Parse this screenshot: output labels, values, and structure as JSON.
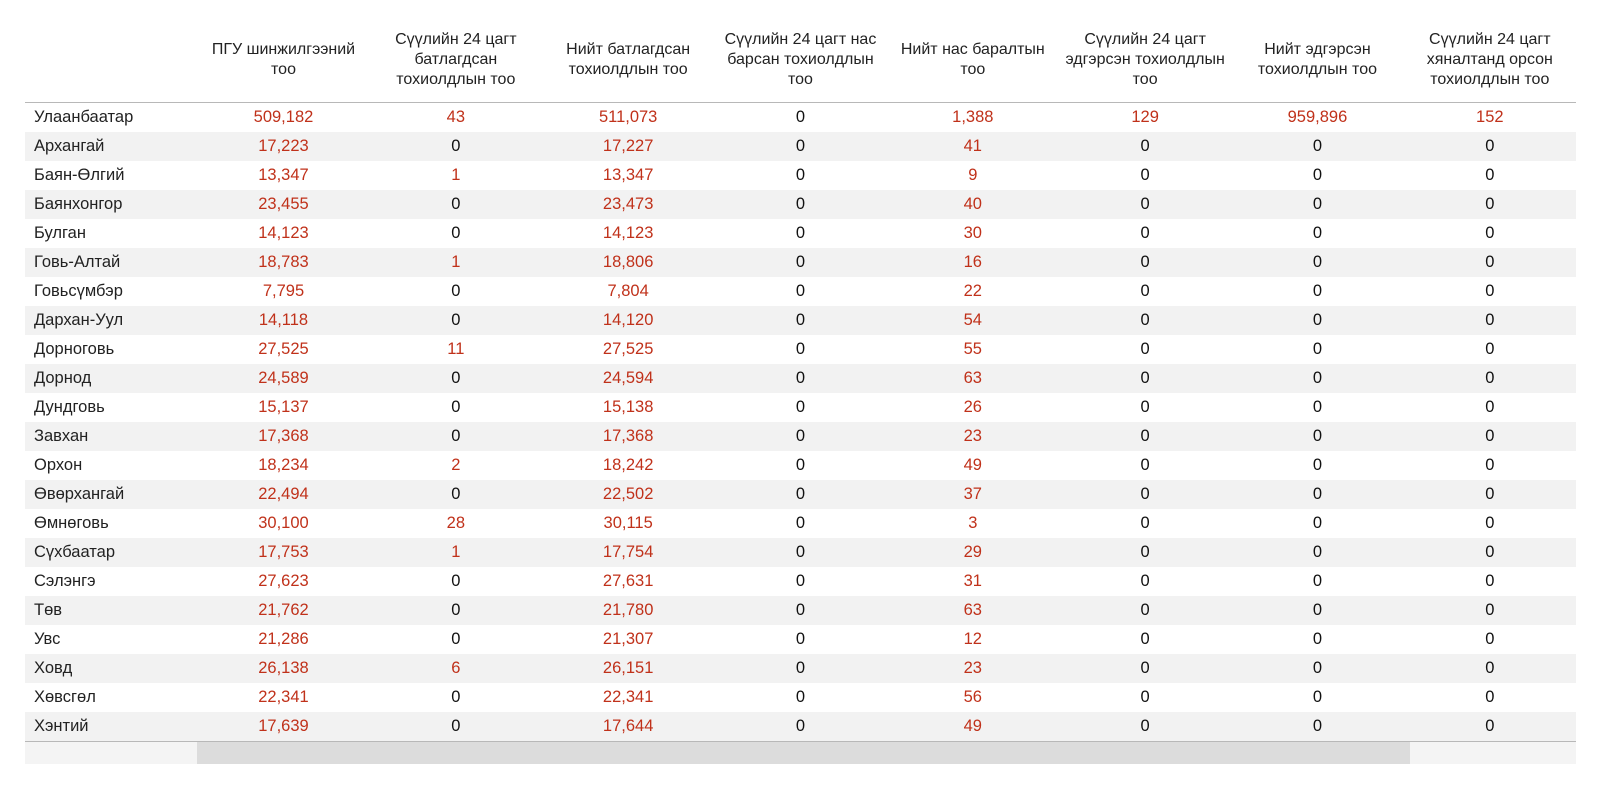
{
  "table": {
    "columns": [
      "",
      "ПГУ шинжилгээний тоо",
      "Сүүлийн 24 цагт батлагдсан тохиолдлын тоо",
      "Нийт батлагдсан тохиолдлын тоо",
      "Сүүлийн 24 цагт нас барсан тохиолдлын тоо",
      "Нийт нас баралтын тоо",
      "Сүүлийн 24 цагт эдгэрсэн тохиолдлын тоо",
      "Нийт эдгэрсэн тохиолдлын тоо",
      "Сүүлийн 24 цагт хяналтанд орсон тохиолдлын тоо"
    ],
    "colors": {
      "highlight": "#c0311a",
      "normal": "#111111",
      "stripe": "#f2f2f2"
    },
    "rows": [
      [
        "Улаанбаатар",
        "509,182",
        "43",
        "511,073",
        "0",
        "1,388",
        "129",
        "959,896",
        "152"
      ],
      [
        "Архангай",
        "17,223",
        "0",
        "17,227",
        "0",
        "41",
        "0",
        "0",
        "0"
      ],
      [
        "Баян-Өлгий",
        "13,347",
        "1",
        "13,347",
        "0",
        "9",
        "0",
        "0",
        "0"
      ],
      [
        "Баянхонгор",
        "23,455",
        "0",
        "23,473",
        "0",
        "40",
        "0",
        "0",
        "0"
      ],
      [
        "Булган",
        "14,123",
        "0",
        "14,123",
        "0",
        "30",
        "0",
        "0",
        "0"
      ],
      [
        "Говь-Алтай",
        "18,783",
        "1",
        "18,806",
        "0",
        "16",
        "0",
        "0",
        "0"
      ],
      [
        "Говьсүмбэр",
        "7,795",
        "0",
        "7,804",
        "0",
        "22",
        "0",
        "0",
        "0"
      ],
      [
        "Дархан-Уул",
        "14,118",
        "0",
        "14,120",
        "0",
        "54",
        "0",
        "0",
        "0"
      ],
      [
        "Дорноговь",
        "27,525",
        "11",
        "27,525",
        "0",
        "55",
        "0",
        "0",
        "0"
      ],
      [
        "Дорнод",
        "24,589",
        "0",
        "24,594",
        "0",
        "63",
        "0",
        "0",
        "0"
      ],
      [
        "Дундговь",
        "15,137",
        "0",
        "15,138",
        "0",
        "26",
        "0",
        "0",
        "0"
      ],
      [
        "Завхан",
        "17,368",
        "0",
        "17,368",
        "0",
        "23",
        "0",
        "0",
        "0"
      ],
      [
        "Орхон",
        "18,234",
        "2",
        "18,242",
        "0",
        "49",
        "0",
        "0",
        "0"
      ],
      [
        "Өвөрхангай",
        "22,494",
        "0",
        "22,502",
        "0",
        "37",
        "0",
        "0",
        "0"
      ],
      [
        "Өмнөговь",
        "30,100",
        "28",
        "30,115",
        "0",
        "3",
        "0",
        "0",
        "0"
      ],
      [
        "Сүхбаатар",
        "17,753",
        "1",
        "17,754",
        "0",
        "29",
        "0",
        "0",
        "0"
      ],
      [
        "Сэлэнгэ",
        "27,623",
        "0",
        "27,631",
        "0",
        "31",
        "0",
        "0",
        "0"
      ],
      [
        "Төв",
        "21,762",
        "0",
        "21,780",
        "0",
        "63",
        "0",
        "0",
        "0"
      ],
      [
        "Увс",
        "21,286",
        "0",
        "21,307",
        "0",
        "12",
        "0",
        "0",
        "0"
      ],
      [
        "Ховд",
        "26,138",
        "6",
        "26,151",
        "0",
        "23",
        "0",
        "0",
        "0"
      ],
      [
        "Хөвсгөл",
        "22,341",
        "0",
        "22,341",
        "0",
        "56",
        "0",
        "0",
        "0"
      ],
      [
        "Хэнтий",
        "17,639",
        "0",
        "17,644",
        "0",
        "49",
        "0",
        "0",
        "0"
      ]
    ]
  }
}
